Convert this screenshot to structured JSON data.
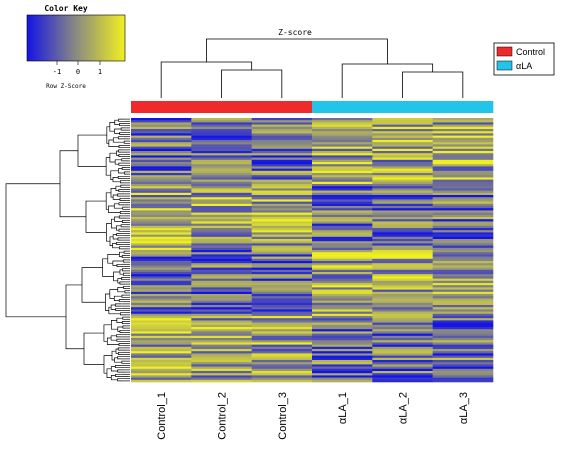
{
  "colors": {
    "low": "#1414e6",
    "mid": "#8a8a82",
    "high": "#f0f01e",
    "control": "#ee2a2a",
    "alpha_la": "#22c4e8"
  },
  "color_key": {
    "title": "Color Key",
    "ticks": [
      "-1",
      "0",
      "1"
    ],
    "label": "Row Z-Score"
  },
  "legend": {
    "items": [
      {
        "label": "Control",
        "color": "#ee2a2a"
      },
      {
        "label": "αLA",
        "color": "#22c4e8"
      }
    ]
  },
  "chart_data": {
    "type": "heatmap",
    "title": "Z-score",
    "columns": [
      "Control_1",
      "Control_2",
      "Control_3",
      "αLA_1",
      "αLA_2",
      "αLA_3"
    ],
    "groups": [
      "Control",
      "Control",
      "Control",
      "αLA",
      "αLA",
      "αLA"
    ],
    "value_range": [
      -1.5,
      1.5
    ],
    "row_dendrogram": true,
    "column_dendrogram": true,
    "legend_position": "top-right",
    "grid": false
  }
}
